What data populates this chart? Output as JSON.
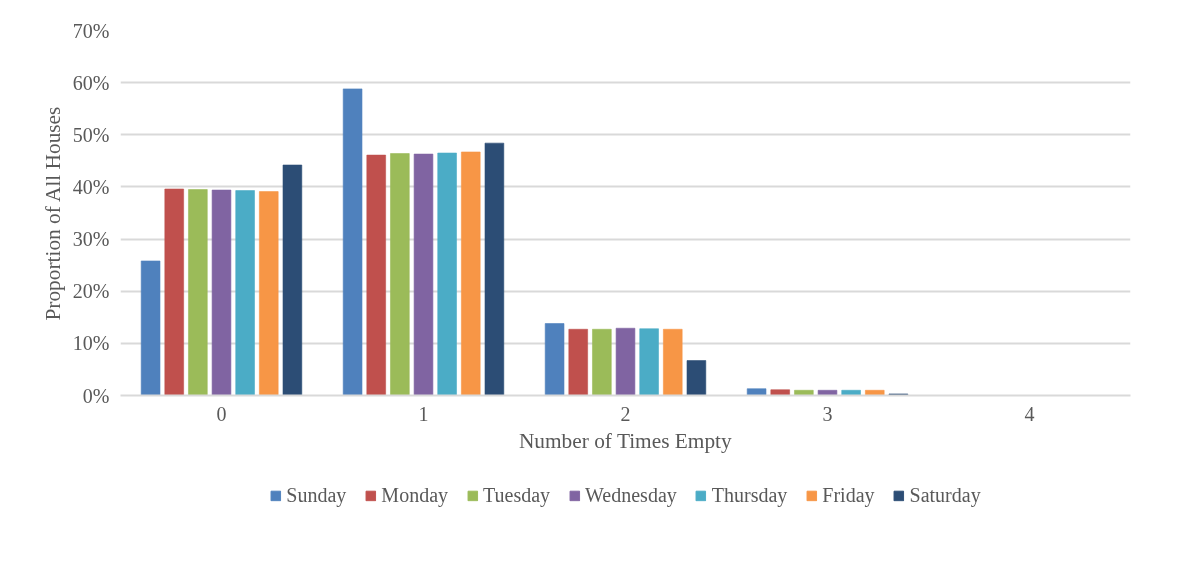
{
  "chart_data": {
    "type": "bar",
    "xlabel": "Number of Times Empty",
    "ylabel": "Proportion of All Houses",
    "categories": [
      "0",
      "1",
      "2",
      "3",
      "4"
    ],
    "series": [
      {
        "name": "Sunday",
        "color": "#4f81bd",
        "values": [
          25.8,
          58.8,
          13.8,
          1.3,
          0
        ]
      },
      {
        "name": "Monday",
        "color": "#c0504d",
        "values": [
          39.6,
          46.1,
          12.7,
          1.1,
          0
        ]
      },
      {
        "name": "Tuesday",
        "color": "#9bbb59",
        "values": [
          39.5,
          46.4,
          12.7,
          1.0,
          0
        ]
      },
      {
        "name": "Wednesday",
        "color": "#8064a2",
        "values": [
          39.4,
          46.3,
          12.9,
          1.0,
          0
        ]
      },
      {
        "name": "Thursday",
        "color": "#4bacc6",
        "values": [
          39.3,
          46.5,
          12.8,
          1.0,
          0
        ]
      },
      {
        "name": "Friday",
        "color": "#f79646",
        "values": [
          39.1,
          46.7,
          12.7,
          1.0,
          0
        ]
      },
      {
        "name": "Saturday",
        "color": "#2c4d75",
        "values": [
          44.2,
          48.4,
          6.7,
          0.3,
          0
        ]
      }
    ],
    "ylim": [
      0,
      70
    ],
    "yticks": [
      {
        "value": 0,
        "label": "0%"
      },
      {
        "value": 10,
        "label": "10%"
      },
      {
        "value": 20,
        "label": "20%"
      },
      {
        "value": 30,
        "label": "30%"
      },
      {
        "value": 40,
        "label": "40%"
      },
      {
        "value": 50,
        "label": "50%"
      },
      {
        "value": 60,
        "label": "60%"
      },
      {
        "value": 70,
        "label": "70%"
      }
    ],
    "grid": "y",
    "legend": "bottom"
  }
}
